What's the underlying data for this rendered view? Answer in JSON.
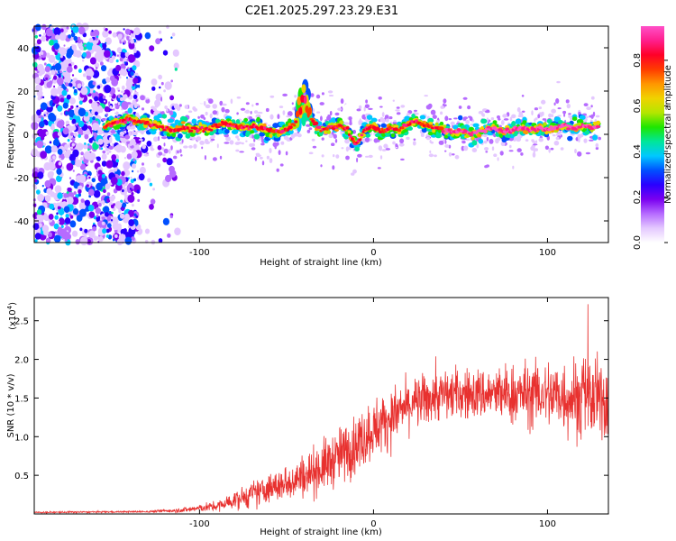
{
  "title": "C2E1.2025.297.23.29.E31",
  "chart_data": [
    {
      "type": "heatmap",
      "name": "spectrogram",
      "xlabel": "Height of straight line (km)",
      "ylabel": "Frequency (Hz)",
      "xlim": [
        -195,
        135
      ],
      "ylim": [
        -50,
        50
      ],
      "xticks": [
        -100,
        0,
        100
      ],
      "yticks": [
        -40,
        -20,
        0,
        20,
        40
      ],
      "colorbar": {
        "label": "Normalized spectral amplitude",
        "range": [
          0,
          0.95
        ],
        "ticks": [
          0.0,
          0.2,
          0.4,
          0.6,
          0.8
        ],
        "colors": [
          "#ffffff",
          "#e4c8ff",
          "#b66bff",
          "#7a00f0",
          "#2a00ff",
          "#0050ff",
          "#00c8ff",
          "#00e69a",
          "#1ee600",
          "#b4e600",
          "#f0d200",
          "#ff9600",
          "#ff3c00",
          "#ff0028",
          "#ff1e8c",
          "#ff50c8"
        ]
      },
      "ridge": [
        {
          "x": -155,
          "f": 3
        },
        {
          "x": -150,
          "f": 5
        },
        {
          "x": -145,
          "f": 6
        },
        {
          "x": -140,
          "f": 7
        },
        {
          "x": -135,
          "f": 6
        },
        {
          "x": -130,
          "f": 5
        },
        {
          "x": -125,
          "f": 4
        },
        {
          "x": -120,
          "f": 3
        },
        {
          "x": -115,
          "f": 2
        },
        {
          "x": -110,
          "f": 3
        },
        {
          "x": -105,
          "f": 2
        },
        {
          "x": -100,
          "f": 3
        },
        {
          "x": -95,
          "f": 2
        },
        {
          "x": -90,
          "f": 4
        },
        {
          "x": -85,
          "f": 5
        },
        {
          "x": -80,
          "f": 4
        },
        {
          "x": -75,
          "f": 3
        },
        {
          "x": -70,
          "f": 4
        },
        {
          "x": -65,
          "f": 3
        },
        {
          "x": -60,
          "f": 2
        },
        {
          "x": -55,
          "f": 1
        },
        {
          "x": -50,
          "f": 2
        },
        {
          "x": -45,
          "f": 5
        },
        {
          "x": -40,
          "f": 18
        },
        {
          "x": -35,
          "f": 6
        },
        {
          "x": -30,
          "f": 2
        },
        {
          "x": -25,
          "f": 3
        },
        {
          "x": -20,
          "f": 4
        },
        {
          "x": -15,
          "f": 2
        },
        {
          "x": -10,
          "f": -5
        },
        {
          "x": -5,
          "f": 2
        },
        {
          "x": 0,
          "f": 4
        },
        {
          "x": 5,
          "f": 1
        },
        {
          "x": 10,
          "f": 3
        },
        {
          "x": 15,
          "f": 2
        },
        {
          "x": 20,
          "f": 5
        },
        {
          "x": 25,
          "f": 6
        },
        {
          "x": 30,
          "f": 4
        },
        {
          "x": 35,
          "f": 3
        },
        {
          "x": 40,
          "f": 2
        },
        {
          "x": 45,
          "f": 1
        },
        {
          "x": 50,
          "f": 2
        },
        {
          "x": 55,
          "f": 0
        },
        {
          "x": 60,
          "f": 1
        },
        {
          "x": 65,
          "f": 2
        },
        {
          "x": 70,
          "f": 3
        },
        {
          "x": 75,
          "f": 1
        },
        {
          "x": 80,
          "f": 2
        },
        {
          "x": 85,
          "f": 3
        },
        {
          "x": 90,
          "f": 2
        },
        {
          "x": 95,
          "f": 3
        },
        {
          "x": 100,
          "f": 2
        },
        {
          "x": 105,
          "f": 3
        },
        {
          "x": 110,
          "f": 4
        },
        {
          "x": 115,
          "f": 3
        },
        {
          "x": 120,
          "f": 4
        },
        {
          "x": 125,
          "f": 3
        },
        {
          "x": 130,
          "f": 4
        }
      ]
    },
    {
      "type": "line",
      "name": "snr",
      "xlabel": "Height of straight line (km)",
      "ylabel": "SNR (10 * v/v)",
      "ylabel_scale": "(x10",
      "ylabel_scale_exp": "4",
      "ylabel_scale_close": ")",
      "xlim": [
        -195,
        135
      ],
      "ylim": [
        0,
        2.8
      ],
      "xticks": [
        -100,
        0,
        100
      ],
      "yticks": [
        0.5,
        1.0,
        1.5,
        2.0,
        2.5
      ],
      "line_color": "#e8312f",
      "envelope": [
        {
          "x": -195,
          "mean": 0.02,
          "spread": 0.01
        },
        {
          "x": -130,
          "mean": 0.03,
          "spread": 0.01
        },
        {
          "x": -110,
          "mean": 0.05,
          "spread": 0.03
        },
        {
          "x": -90,
          "mean": 0.1,
          "spread": 0.06
        },
        {
          "x": -70,
          "mean": 0.25,
          "spread": 0.15
        },
        {
          "x": -50,
          "mean": 0.4,
          "spread": 0.2
        },
        {
          "x": -30,
          "mean": 0.6,
          "spread": 0.3
        },
        {
          "x": -10,
          "mean": 0.9,
          "spread": 0.35
        },
        {
          "x": 0,
          "mean": 1.1,
          "spread": 0.35
        },
        {
          "x": 20,
          "mean": 1.4,
          "spread": 0.3
        },
        {
          "x": 40,
          "mean": 1.55,
          "spread": 0.3
        },
        {
          "x": 60,
          "mean": 1.55,
          "spread": 0.3
        },
        {
          "x": 80,
          "mean": 1.55,
          "spread": 0.35
        },
        {
          "x": 100,
          "mean": 1.55,
          "spread": 0.4
        },
        {
          "x": 120,
          "mean": 1.5,
          "spread": 0.5
        },
        {
          "x": 135,
          "mean": 1.45,
          "spread": 0.45
        }
      ]
    }
  ]
}
